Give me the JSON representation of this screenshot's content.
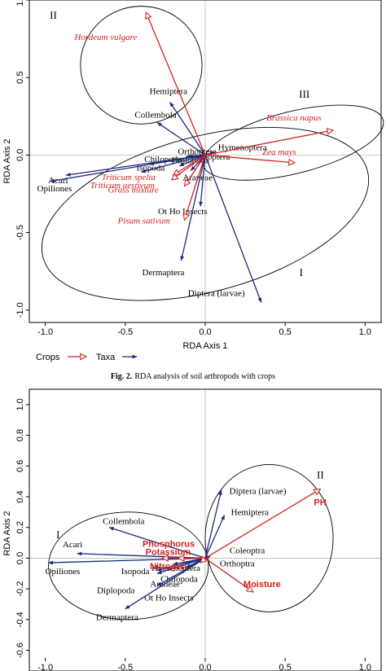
{
  "chart_data": [
    {
      "type": "scatter",
      "title": "",
      "xlabel": "RDA Axis 1",
      "ylabel": "RDA Axis 2",
      "xlim": [
        -1.1,
        1.1
      ],
      "ylim": [
        -1.08,
        1.0
      ],
      "x_ticks": [
        -1.0,
        -0.5,
        0.0,
        0.5,
        1.0
      ],
      "x_tick_labels": [
        "-1.0",
        "-0.5",
        "0.0",
        "0.5",
        "1.0"
      ],
      "y_ticks": [
        -1.0,
        -0.5,
        0.0,
        0.5,
        1.0
      ],
      "y_tick_labels": [
        "-1.0",
        "-0.5",
        "0.0",
        "0.5",
        "1.0"
      ],
      "crop_vectors": [
        {
          "name": "Hordeum vulgare",
          "x": -0.37,
          "y": 0.92
        },
        {
          "name": "Brassica napus",
          "x": 0.8,
          "y": 0.16
        },
        {
          "name": "Zea mays",
          "x": 0.56,
          "y": -0.05
        },
        {
          "name": "Triticum spelta",
          "x": -0.2,
          "y": -0.13
        },
        {
          "name": "Triticum aestivum",
          "x": -0.21,
          "y": -0.16
        },
        {
          "name": "Grass mixture",
          "x": -0.13,
          "y": -0.2
        },
        {
          "name": "Pisum sativum",
          "x": -0.13,
          "y": -0.42
        }
      ],
      "taxa_vectors": [
        {
          "name": "Hemiptera",
          "x": -0.22,
          "y": 0.34
        },
        {
          "name": "Collembola",
          "x": -0.3,
          "y": 0.21
        },
        {
          "name": "Hymenoptera",
          "x": 0.06,
          "y": 0.02
        },
        {
          "name": "Orthoptera",
          "x": -0.12,
          "y": -0.01
        },
        {
          "name": "Coleoptera",
          "x": -0.03,
          "y": -0.04
        },
        {
          "name": "Chilopoda",
          "x": -0.35,
          "y": -0.06
        },
        {
          "name": "Diplopoda",
          "x": -0.16,
          "y": -0.07
        },
        {
          "name": "Isopoda",
          "x": -0.4,
          "y": -0.11
        },
        {
          "name": "Araneae",
          "x": -0.09,
          "y": -0.1
        },
        {
          "name": "Acari",
          "x": -0.87,
          "y": -0.13
        },
        {
          "name": "Opiliones",
          "x": -0.97,
          "y": -0.17
        },
        {
          "name": "Ot Ho Insects",
          "x": -0.03,
          "y": -0.33
        },
        {
          "name": "Dermaptera",
          "x": -0.15,
          "y": -0.68
        },
        {
          "name": "Diptera (larvae)",
          "x": 0.35,
          "y": -0.95
        }
      ],
      "group_ellipses": [
        {
          "label": "I",
          "cx": 0.0,
          "cy": -0.38,
          "rx": 1.05,
          "ry": 0.5,
          "rotation_deg": 15
        },
        {
          "label": "II",
          "cx": -0.4,
          "cy": 0.58,
          "rx": 0.38,
          "ry": 0.38,
          "rotation_deg": 0
        },
        {
          "label": "III",
          "cx": 0.55,
          "cy": 0.08,
          "rx": 0.58,
          "ry": 0.2,
          "rotation_deg": 14
        }
      ],
      "legend": [
        {
          "label": "Crops",
          "color": "#d42020",
          "marker": "open-arrow"
        },
        {
          "label": "Taxa",
          "color": "#1c2a7a",
          "marker": "filled-arrow"
        }
      ]
    },
    {
      "type": "scatter",
      "title": "",
      "xlabel": "",
      "ylabel": "RDA Axis 2",
      "xlim": [
        -1.1,
        1.1
      ],
      "ylim": [
        -0.65,
        1.1
      ],
      "x_ticks": [
        -1.0,
        -0.5,
        0.0,
        0.5,
        1.0
      ],
      "x_tick_labels": [
        "-1.0",
        "-0.5",
        "0.0",
        "0.5",
        "1.0"
      ],
      "y_ticks": [
        -0.6,
        -0.4,
        -0.2,
        0.0,
        0.2,
        0.4,
        0.6,
        0.8,
        1.0
      ],
      "y_tick_labels": [
        "-0.6",
        "-0.4",
        "-0.2",
        "0.0",
        "0.2",
        "0.4",
        "0.6",
        "0.8",
        "1.0"
      ],
      "env_vectors": [
        {
          "name": "PH",
          "x": 0.72,
          "y": 0.45
        },
        {
          "name": "Phosphorus",
          "x": -0.27,
          "y": 0.0
        },
        {
          "name": "Potassium",
          "x": -0.17,
          "y": 0.0
        },
        {
          "name": "Nitrogen",
          "x": -0.03,
          "y": -0.03
        },
        {
          "name": "Moisture",
          "x": 0.3,
          "y": -0.22
        }
      ],
      "taxa_vectors": [
        {
          "name": "Diptera (larvae)",
          "x": 0.1,
          "y": 0.44
        },
        {
          "name": "Hemiptera",
          "x": 0.12,
          "y": 0.28
        },
        {
          "name": "Collembola",
          "x": -0.6,
          "y": 0.2
        },
        {
          "name": "Acari",
          "x": -0.8,
          "y": 0.03
        },
        {
          "name": "Opiliones",
          "x": -0.98,
          "y": -0.03
        },
        {
          "name": "Coleoptra",
          "x": 0.03,
          "y": 0.01
        },
        {
          "name": "Orthoptra",
          "x": 0.02,
          "y": -0.01
        },
        {
          "name": "Hymenoptera",
          "x": -0.05,
          "y": -0.02
        },
        {
          "name": "Isopoda",
          "x": -0.2,
          "y": -0.04
        },
        {
          "name": "Araneae",
          "x": -0.12,
          "y": -0.06
        },
        {
          "name": "Chilopoda",
          "x": -0.3,
          "y": -0.1
        },
        {
          "name": "Diplopoda",
          "x": -0.3,
          "y": -0.08
        },
        {
          "name": "Ot Ho Insects",
          "x": -0.3,
          "y": -0.18
        },
        {
          "name": "Dermaptera",
          "x": -0.5,
          "y": -0.33
        }
      ],
      "group_ellipses": [
        {
          "label": "I",
          "cx": -0.48,
          "cy": -0.05,
          "rx": 0.5,
          "ry": 0.35,
          "rotation_deg": 0
        },
        {
          "label": "II",
          "cx": 0.4,
          "cy": 0.13,
          "rx": 0.4,
          "ry": 0.48,
          "rotation_deg": 0
        }
      ]
    }
  ],
  "legend_labels": {
    "crops": "Crops",
    "taxa": "Taxa"
  },
  "caption": {
    "label": "Fig. 2.",
    "text": "RDA analysis of soil arthropods with crops"
  },
  "colors": {
    "crop_arrow": "#d42020",
    "taxa_arrow": "#1c2a7a",
    "env_arrow": "#d42020"
  }
}
